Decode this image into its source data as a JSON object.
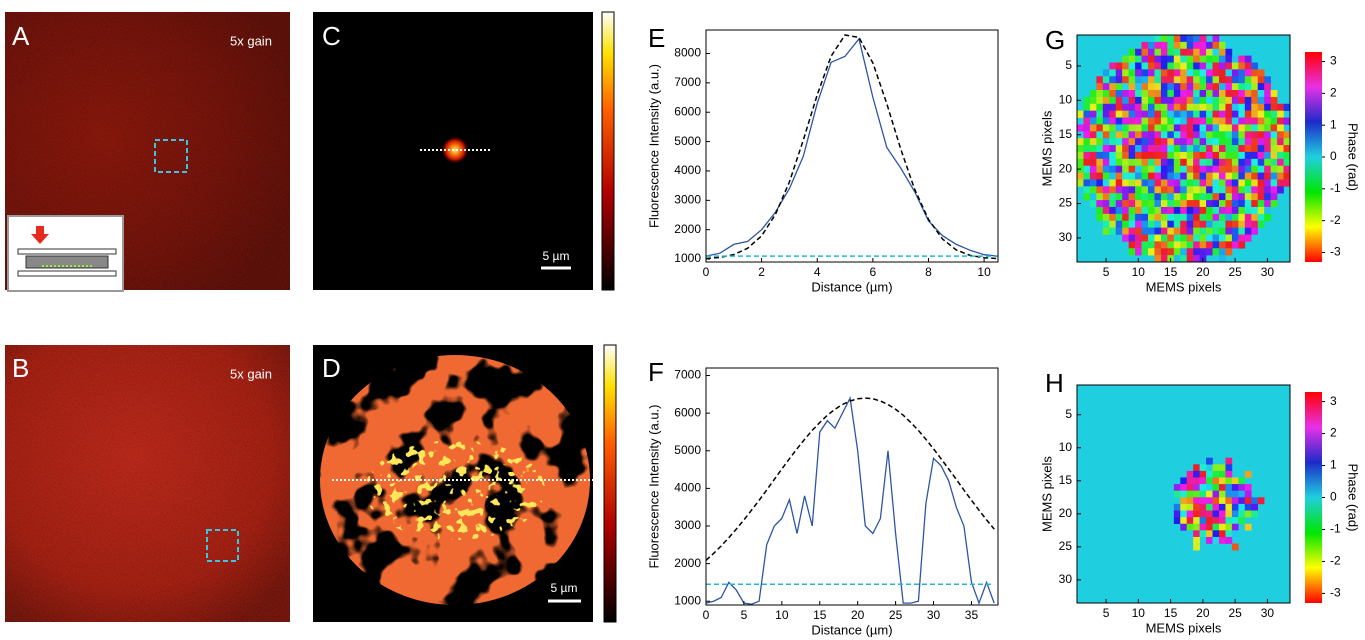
{
  "panels": [
    {
      "label": "A",
      "note": "5x gain"
    },
    {
      "label": "B",
      "note": "5x gain"
    },
    {
      "label": "C",
      "scale": "5 µm"
    },
    {
      "label": "D",
      "scale": "5 µm"
    }
  ],
  "chart_data": [
    {
      "type": "line",
      "label": "E",
      "x_label": "Distance (µm)",
      "y_label": "Fluorescence Intensity (a.u.)",
      "x": [
        0,
        0.5,
        1,
        1.5,
        2,
        2.5,
        3,
        3.5,
        4,
        4.5,
        5,
        5.5,
        6,
        6.5,
        7,
        7.5,
        8,
        8.5,
        9,
        9.5,
        10,
        10.5
      ],
      "series": [
        {
          "color": "#2d55a5",
          "dash": false,
          "values": [
            1100,
            1200,
            1500,
            1600,
            2000,
            2600,
            3400,
            4500,
            6300,
            7700,
            7900,
            8500,
            6500,
            4800,
            4100,
            3300,
            2300,
            1800,
            1500,
            1300,
            1150,
            1100
          ]
        },
        {
          "color": "#000000",
          "dash": true,
          "values": [
            1019,
            1057,
            1152,
            1369,
            1790,
            2524,
            3626,
            5052,
            6590,
            7907,
            8631,
            8546,
            7676,
            6290,
            4750,
            3379,
            2349,
            1685,
            1309,
            1126,
            1047,
            1015
          ]
        },
        {
          "color": "#22b5d8",
          "dash": true,
          "values": [
            1100,
            1100,
            1100,
            1100,
            1100,
            1100,
            1100,
            1100,
            1100,
            1100,
            1100,
            1100,
            1100,
            1100,
            1100,
            1100,
            1100,
            1100,
            1100,
            1100,
            1100,
            1100
          ]
        }
      ],
      "xlim": [
        0,
        10.5
      ],
      "ylim": [
        900,
        8800
      ],
      "xticks": [
        0,
        2,
        4,
        6,
        8,
        10
      ],
      "yticks": [
        1000,
        2000,
        3000,
        4000,
        5000,
        6000,
        7000,
        8000
      ]
    },
    {
      "type": "line",
      "label": "F",
      "x_label": "Distance (µm)",
      "y_label": "Fluorescence Intensity (a.u.)",
      "x": [
        0,
        1,
        2,
        3,
        4,
        5,
        6,
        7,
        8,
        9,
        10,
        11,
        12,
        13,
        14,
        15,
        16,
        17,
        18,
        19,
        20,
        21,
        22,
        23,
        24,
        25,
        26,
        27,
        28,
        29,
        30,
        31,
        32,
        33,
        34,
        35,
        36,
        37,
        38
      ],
      "series": [
        {
          "color": "#2d55a5",
          "dash": false,
          "values": [
            950,
            1000,
            1100,
            1500,
            1300,
            950,
            920,
            1000,
            2500,
            3000,
            3200,
            3700,
            2800,
            3800,
            3000,
            5500,
            5800,
            5600,
            6000,
            6400,
            5000,
            3000,
            2800,
            3200,
            5000,
            2800,
            950,
            950,
            1000,
            3600,
            4800,
            4600,
            4200,
            3500,
            3000,
            1500,
            950,
            1500,
            950
          ]
        },
        {
          "color": "#000000",
          "dash": true,
          "values": [
            2088,
            2271,
            2471,
            2687,
            2918,
            3161,
            3419,
            3683,
            3958,
            4238,
            4514,
            4787,
            5053,
            5306,
            5540,
            5752,
            5944,
            6103,
            6230,
            6324,
            6381,
            6400,
            6381,
            6324,
            6230,
            6103,
            5944,
            5752,
            5540,
            5306,
            5053,
            4787,
            4514,
            4238,
            3958,
            3683,
            3419,
            3161,
            2918
          ]
        },
        {
          "color": "#22b5d8",
          "dash": true,
          "values": [
            1450,
            1450,
            1450,
            1450,
            1450,
            1450,
            1450,
            1450,
            1450,
            1450,
            1450,
            1450,
            1450,
            1450,
            1450,
            1450,
            1450,
            1450,
            1450,
            1450,
            1450,
            1450,
            1450,
            1450,
            1450,
            1450,
            1450,
            1450,
            1450,
            1450,
            1450,
            1450,
            1450,
            1450,
            1450,
            1450,
            1450,
            1450,
            1450
          ]
        }
      ],
      "xlim": [
        0,
        38.5
      ],
      "ylim": [
        900,
        7200
      ],
      "xticks": [
        0,
        5,
        10,
        15,
        20,
        25,
        30,
        35
      ],
      "yticks": [
        1000,
        2000,
        3000,
        4000,
        5000,
        6000,
        7000
      ]
    },
    {
      "type": "heatmap",
      "label": "G",
      "x_label": "MEMS pixels",
      "y_label": "MEMS pixels",
      "y_inverted": true,
      "xlim": [
        0.5,
        33.5
      ],
      "ylim": [
        0.5,
        33.5
      ],
      "xticks": [
        5,
        10,
        15,
        20,
        25,
        30
      ],
      "yticks": [
        5,
        10,
        15,
        20,
        25,
        30
      ],
      "colorbar": {
        "label": "Phase (rad)",
        "lim": [
          -3.3,
          3.3
        ],
        "ticks": [
          -3,
          -2,
          -1,
          0,
          1,
          2,
          3
        ]
      }
    },
    {
      "type": "heatmap",
      "label": "H",
      "x_label": "MEMS pixels",
      "y_label": "MEMS pixels",
      "y_inverted": true,
      "xlim": [
        0.5,
        33.5
      ],
      "ylim": [
        0.5,
        33.5
      ],
      "xticks": [
        5,
        10,
        15,
        20,
        25,
        30
      ],
      "yticks": [
        5,
        10,
        15,
        20,
        25,
        30
      ],
      "colorbar": {
        "label": "Phase (rad)",
        "lim": [
          -3.3,
          3.3
        ],
        "ticks": [
          -3,
          -2,
          -1,
          0,
          1,
          2,
          3
        ]
      }
    }
  ]
}
